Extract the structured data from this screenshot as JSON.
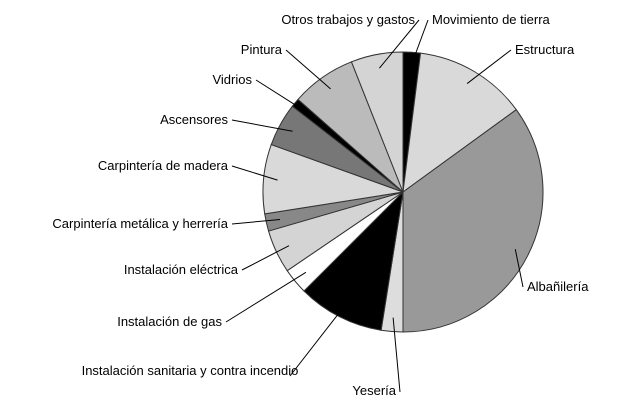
{
  "chart_data": {
    "type": "pie",
    "categories": [
      "Movimiento de tierra",
      "Estructura",
      "Albañilería",
      "Yesería",
      "Instalación sanitaria y contra incendio",
      "Instalación de gas",
      "Instalación eléctrica",
      "Carpintería metálica y herrería",
      "Carpintería de madera",
      "Ascensores",
      "Vidrios",
      "Pintura",
      "Otros trabajos y gastos"
    ],
    "values": [
      2,
      13,
      35,
      2.5,
      10,
      3,
      5,
      2,
      8,
      5,
      1,
      7.5,
      6
    ],
    "colors": [
      "#000000",
      "#d9d9d9",
      "#999999",
      "#dddddd",
      "#000000",
      "#ffffff",
      "#d4d4d4",
      "#888888",
      "#d9d9d9",
      "#777777",
      "#000000",
      "#bbbbbb",
      "#d4d4d4"
    ]
  }
}
